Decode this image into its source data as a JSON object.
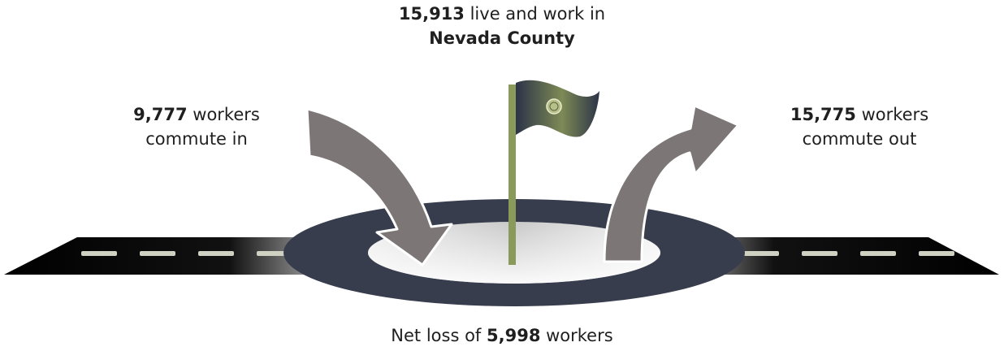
{
  "top": {
    "number": "15,913",
    "text": " live and work in",
    "county": "Nevada County"
  },
  "commute_in": {
    "number": "9,777",
    "text1": " workers",
    "text2": "commute in"
  },
  "commute_out": {
    "number": "15,775",
    "text1": " workers",
    "text2": "commute out"
  },
  "bottom": {
    "prefix": "Net loss of ",
    "number": "5,998",
    "suffix": " workers"
  },
  "colors": {
    "road": "#0b0b0b",
    "road_dash": "#cfd2c2",
    "ring": "#383d4e",
    "arrow": "#7d7676",
    "pole": "#8a9a5b"
  },
  "icons": {
    "flag": "flag-icon",
    "badge": "nevada-badge-icon"
  }
}
